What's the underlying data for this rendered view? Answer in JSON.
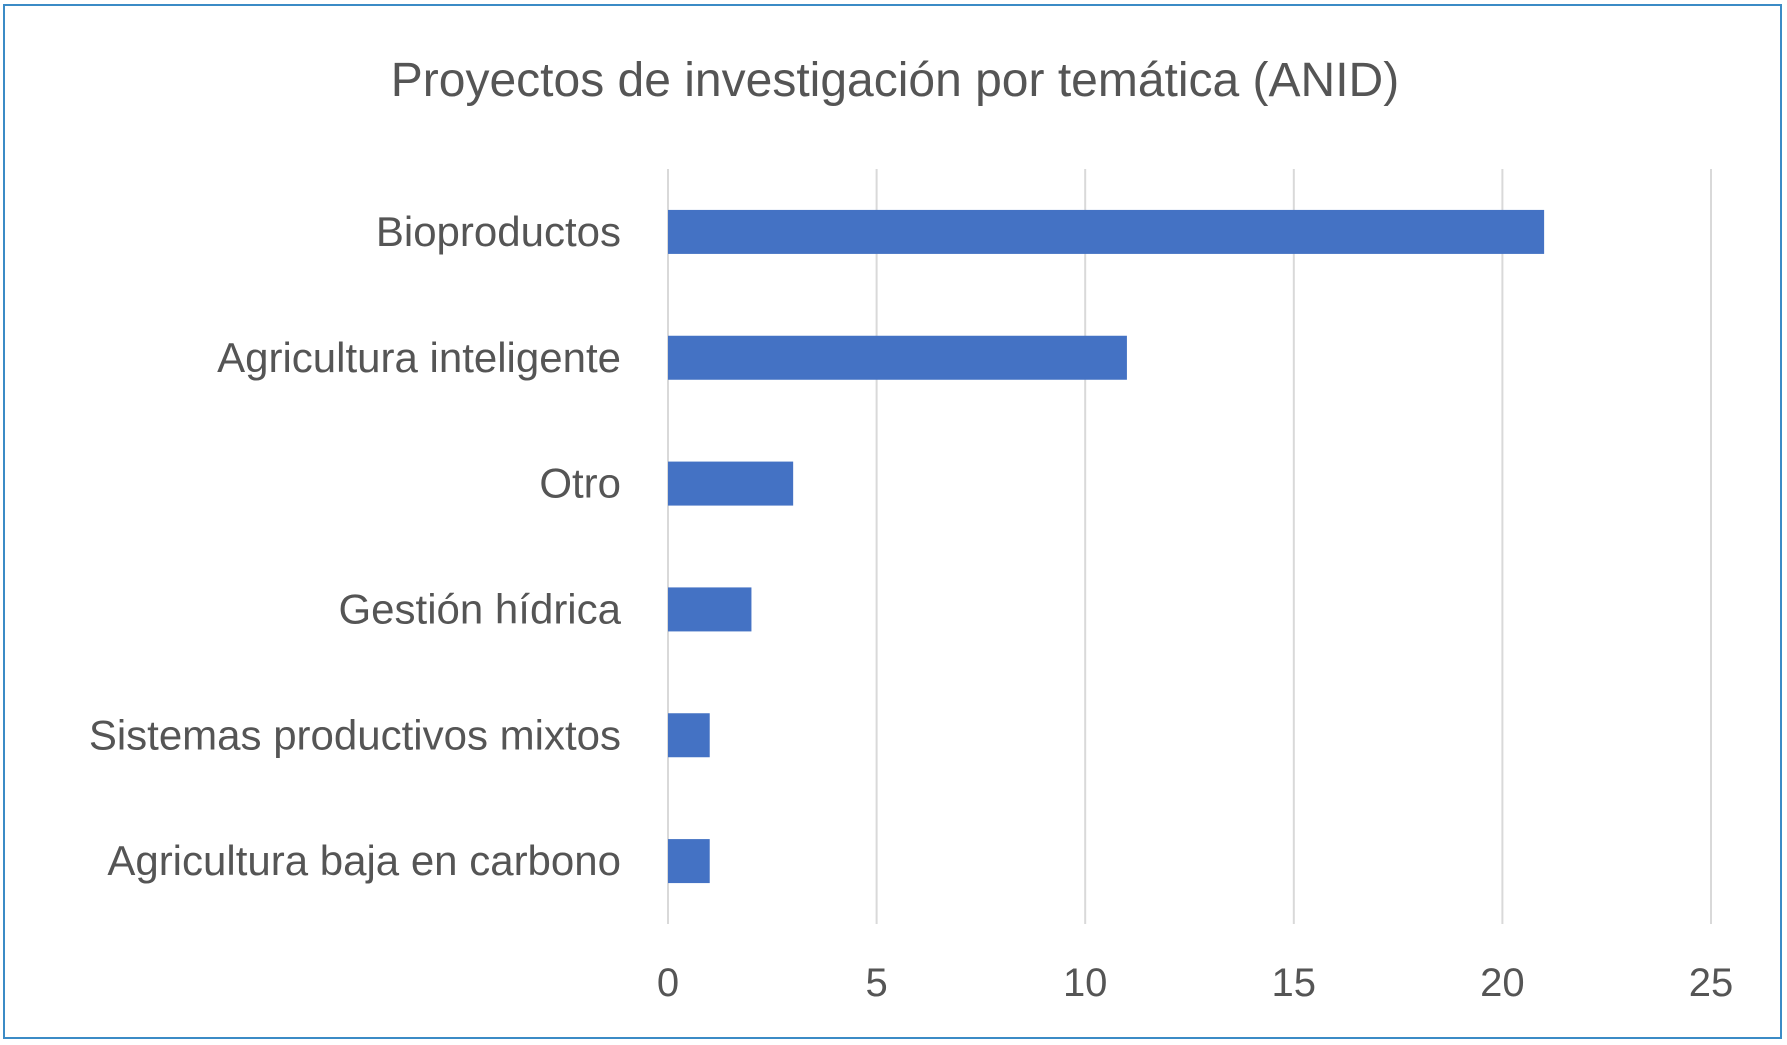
{
  "chart_data": {
    "type": "bar",
    "orientation": "horizontal",
    "title": "Proyectos de investigación por temática (ANID)",
    "categories": [
      "Bioproductos",
      "Agricultura inteligente",
      "Otro",
      "Gestión hídrica",
      "Sistemas productivos mixtos",
      "Agricultura baja en carbono"
    ],
    "values": [
      21,
      11,
      3,
      2,
      1,
      1
    ],
    "xlim": [
      0,
      25
    ],
    "xticks": [
      "0",
      "5",
      "10",
      "15",
      "20",
      "25"
    ],
    "xlabel": "",
    "ylabel": "",
    "grid": "vertical",
    "legend": "none",
    "bar_color": "#4472c4",
    "border_color": "#3b8bc6"
  }
}
